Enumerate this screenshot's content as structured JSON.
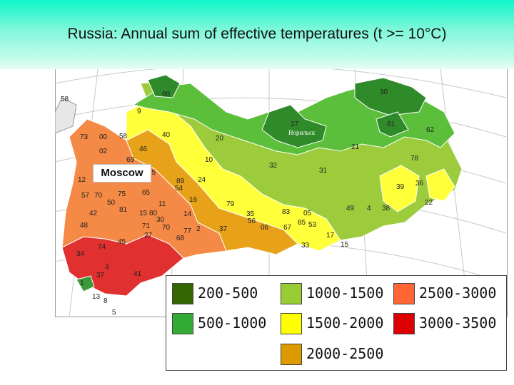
{
  "title": "Russia: Annual sum of effective temperatures (t >= 10°C)",
  "moscow_label": "Moscow",
  "legend": [
    {
      "label": "200-500",
      "color": "#336600"
    },
    {
      "label": "1000-1500",
      "color": "#99cc33"
    },
    {
      "label": "2500-3000",
      "color": "#ff6633"
    },
    {
      "label": "500-1000",
      "color": "#33aa33"
    },
    {
      "label": "1500-2000",
      "color": "#ffff00"
    },
    {
      "label": "3000-3500",
      "color": "#dd0000"
    },
    {
      "label": "2000-2500",
      "color": "#dd9900"
    }
  ],
  "city_label": "Норильск",
  "region_numbers": [
    "58",
    "60",
    "30",
    "9",
    "27",
    "61",
    "62",
    "73",
    "00",
    "58",
    "40",
    "20",
    "02",
    "46",
    "69",
    "10",
    "21",
    "78",
    "32",
    "31",
    "12",
    "55",
    "24",
    "89",
    "39",
    "36",
    "57",
    "70",
    "75",
    "65",
    "54",
    "16",
    "79",
    "22",
    "35",
    "50",
    "81",
    "11",
    "15",
    "80",
    "85",
    "83",
    "49",
    "4",
    "38",
    "42",
    "71",
    "30",
    "14",
    "05",
    "48",
    "77",
    "70",
    "2",
    "37",
    "56",
    "06",
    "67",
    "53",
    "17",
    "74",
    "45",
    "27",
    "68",
    "33",
    "15",
    "34",
    "3",
    "37",
    "41",
    "1",
    "8",
    "13",
    "5"
  ],
  "colors": {
    "header_top": "#0ff5c9",
    "dark_green": "#2e7d32",
    "green": "#4caf50",
    "light_green": "#9ccc3c",
    "yellow": "#ffff33",
    "orange": "#ff8c42",
    "red": "#dc3545"
  }
}
